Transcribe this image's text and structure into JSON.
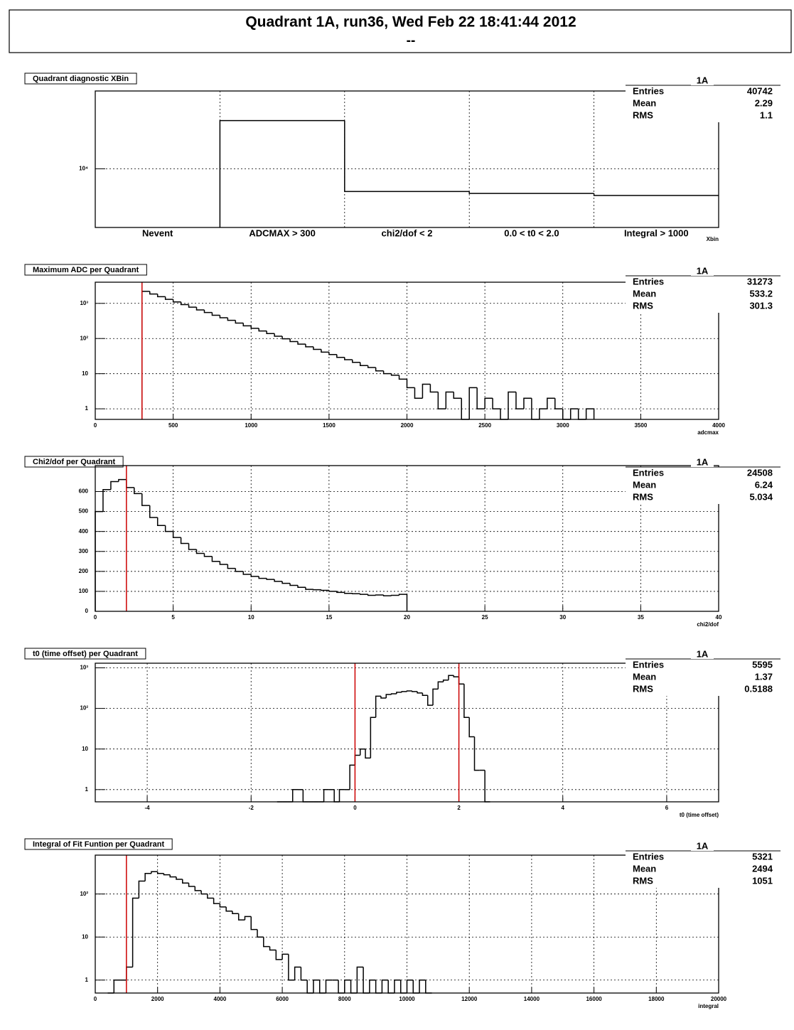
{
  "header": {
    "title": "Quadrant 1A,  run36,  Wed Feb 22 18:41:44 2012",
    "subtitle": "--"
  },
  "chart_data": [
    {
      "type": "histogram",
      "title": "Quadrant diagnostic XBin",
      "x_label": "Xbin",
      "log_y": true,
      "grid": true,
      "color": "#000000",
      "categories": [
        "Nevent",
        "ADCMAX > 300",
        "chi2/dof < 2",
        "0.0 < t0 < 2.0",
        "Integral > 1000"
      ],
      "values": [
        null,
        31273,
        5850,
        5595,
        5321
      ],
      "ylim": [
        2500,
        63000
      ],
      "yticks": [
        {
          "value": 10000,
          "label": "10⁴"
        }
      ],
      "stats": {
        "title": "1A",
        "rows": [
          {
            "label": "Entries",
            "value": 40742
          },
          {
            "label": "Mean",
            "value": 2.29
          },
          {
            "label": "RMS",
            "value": 1.1
          }
        ]
      }
    },
    {
      "type": "histogram",
      "title": "Maximum ADC per Quadrant",
      "x_label": "adcmax",
      "log_y": true,
      "grid": true,
      "color": "#000000",
      "cut_color": "#cc0000",
      "cuts": [
        300
      ],
      "bins": [
        300,
        350,
        400,
        450,
        500,
        550,
        600,
        650,
        700,
        750,
        800,
        850,
        900,
        950,
        1000,
        1050,
        1100,
        1150,
        1200,
        1250,
        1300,
        1350,
        1400,
        1450,
        1500,
        1550,
        1600,
        1650,
        1700,
        1750,
        1800,
        1850,
        1900,
        1950,
        2000,
        2050,
        2100,
        2150,
        2200,
        2250,
        2300,
        2350,
        2400,
        2450,
        2500,
        2550,
        2600,
        2650,
        2700,
        2750,
        2800,
        2850,
        2900,
        2950,
        3000,
        3050,
        3100,
        3150,
        3200
      ],
      "values": [
        2190,
        1840,
        1550,
        1300,
        1100,
        920,
        780,
        650,
        550,
        460,
        390,
        330,
        275,
        230,
        195,
        164,
        138,
        116,
        98,
        82,
        69,
        58,
        49,
        41,
        35,
        29,
        25,
        21,
        17,
        15,
        12,
        10,
        9,
        7,
        4,
        2,
        5,
        3,
        1,
        3,
        2,
        0,
        4,
        1,
        2,
        1,
        0,
        3,
        1,
        2,
        0,
        1,
        2,
        1,
        0,
        1,
        0,
        1
      ],
      "xlim": [
        0,
        4000
      ],
      "xticks": [
        0,
        500,
        1000,
        1500,
        2000,
        2500,
        3000,
        3500,
        4000
      ],
      "ylim": [
        0.5,
        4000
      ],
      "yticks": [
        1,
        10,
        {
          "value": 100,
          "label": "10²"
        },
        {
          "value": 1000,
          "label": "10³"
        }
      ],
      "stats": {
        "title": "1A",
        "rows": [
          {
            "label": "Entries",
            "value": 31273
          },
          {
            "label": "Mean",
            "value": 533.2
          },
          {
            "label": "RMS",
            "value": 301.3
          }
        ]
      }
    },
    {
      "type": "histogram",
      "title": "Chi2/dof per Quadrant",
      "x_label": "chi2/dof",
      "log_y": false,
      "grid": true,
      "color": "#000000",
      "cut_color": "#cc0000",
      "cuts": [
        2
      ],
      "bins": [
        0,
        0.5,
        1,
        1.5,
        2,
        2.5,
        3,
        3.5,
        4,
        4.5,
        5,
        5.5,
        6,
        6.5,
        7,
        7.5,
        8,
        8.5,
        9,
        9.5,
        10,
        10.5,
        11,
        11.5,
        12,
        12.5,
        13,
        13.5,
        14,
        14.5,
        15,
        15.5,
        16,
        16.5,
        17,
        17.5,
        18,
        18.5,
        19,
        19.5,
        20
      ],
      "values": [
        500,
        610,
        650,
        660,
        620,
        590,
        530,
        470,
        430,
        400,
        370,
        340,
        310,
        290,
        275,
        250,
        235,
        215,
        200,
        185,
        175,
        165,
        160,
        150,
        140,
        130,
        120,
        110,
        108,
        105,
        100,
        95,
        90,
        88,
        85,
        80,
        82,
        78,
        80,
        85
      ],
      "xlim": [
        0,
        40
      ],
      "xticks": [
        0,
        5,
        10,
        15,
        20,
        25,
        30,
        35,
        40
      ],
      "ylim": [
        0,
        730
      ],
      "yticks": [
        0,
        100,
        200,
        300,
        400,
        500,
        600
      ],
      "stats": {
        "title": "1A",
        "rows": [
          {
            "label": "Entries",
            "value": 24508
          },
          {
            "label": "Mean",
            "value": 6.24
          },
          {
            "label": "RMS",
            "value": 5.034
          }
        ]
      }
    },
    {
      "type": "histogram",
      "title": "t0 (time offset) per Quadrant",
      "x_label": "t0 (time offset)",
      "log_y": true,
      "grid": true,
      "color": "#000000",
      "cut_color": "#cc0000",
      "cuts": [
        0,
        2
      ],
      "bins": [
        -1.5,
        -1.4,
        -1.3,
        -1.2,
        -1.1,
        -1,
        -0.9,
        -0.8,
        -0.7,
        -0.6,
        -0.5,
        -0.4,
        -0.3,
        -0.2,
        -0.1,
        0,
        0.1,
        0.2,
        0.3,
        0.4,
        0.5,
        0.6,
        0.7,
        0.8,
        0.9,
        1,
        1.1,
        1.2,
        1.3,
        1.4,
        1.5,
        1.6,
        1.7,
        1.8,
        1.9,
        2,
        2.1,
        2.2,
        2.3,
        2.4,
        2.5,
        2.6
      ],
      "values": [
        0,
        0,
        0,
        1,
        1,
        0,
        0,
        0,
        0,
        1,
        1,
        0,
        1,
        1,
        4,
        7,
        10,
        6,
        60,
        200,
        180,
        220,
        230,
        250,
        260,
        270,
        260,
        240,
        210,
        120,
        300,
        450,
        500,
        650,
        600,
        400,
        60,
        20,
        3,
        3,
        0
      ],
      "xlim": [
        -5,
        7
      ],
      "xticks": [
        -4,
        -2,
        0,
        2,
        4,
        6
      ],
      "ylim": [
        0.5,
        1300
      ],
      "yticks": [
        1,
        10,
        {
          "value": 100,
          "label": "10²"
        },
        {
          "value": 1000,
          "label": "10³"
        }
      ],
      "stats": {
        "title": "1A",
        "rows": [
          {
            "label": "Entries",
            "value": 5595
          },
          {
            "label": "Mean",
            "value": 1.37
          },
          {
            "label": "RMS",
            "value": 0.5188
          }
        ]
      }
    },
    {
      "type": "histogram",
      "title": "Integral of Fit Funtion per Quadrant",
      "x_label": "integral",
      "log_y": true,
      "grid": true,
      "color": "#000000",
      "cut_color": "#cc0000",
      "cuts": [
        1000
      ],
      "bins": [
        400,
        600,
        800,
        1000,
        1200,
        1400,
        1600,
        1800,
        2000,
        2200,
        2400,
        2600,
        2800,
        3000,
        3200,
        3400,
        3600,
        3800,
        4000,
        4200,
        4400,
        4600,
        4800,
        5000,
        5200,
        5400,
        5600,
        5800,
        6000,
        6200,
        6400,
        6600,
        6800,
        7000,
        7200,
        7400,
        7600,
        7800,
        8000,
        8200,
        8400,
        8600,
        8800,
        9000,
        9200,
        9400,
        9600,
        9800,
        10000,
        10200,
        10400,
        10600,
        10800
      ],
      "values": [
        0,
        1,
        1,
        2,
        80,
        200,
        300,
        330,
        300,
        280,
        250,
        220,
        180,
        150,
        120,
        100,
        80,
        60,
        50,
        40,
        35,
        25,
        30,
        15,
        10,
        6,
        5,
        3,
        4,
        1,
        2,
        1,
        0,
        1,
        0,
        1,
        1,
        0,
        1,
        0,
        2,
        0,
        1,
        0,
        1,
        0,
        1,
        0,
        1,
        0,
        1,
        0
      ],
      "xlim": [
        0,
        20000
      ],
      "xticks": [
        0,
        2000,
        4000,
        6000,
        8000,
        10000,
        12000,
        14000,
        16000,
        18000,
        20000
      ],
      "ylim": [
        0.5,
        800
      ],
      "yticks": [
        1,
        10,
        {
          "value": 100,
          "label": "10²"
        }
      ],
      "stats": {
        "title": "1A",
        "rows": [
          {
            "label": "Entries",
            "value": 5321
          },
          {
            "label": "Mean",
            "value": 2494
          },
          {
            "label": "RMS",
            "value": 1051
          }
        ]
      }
    }
  ]
}
